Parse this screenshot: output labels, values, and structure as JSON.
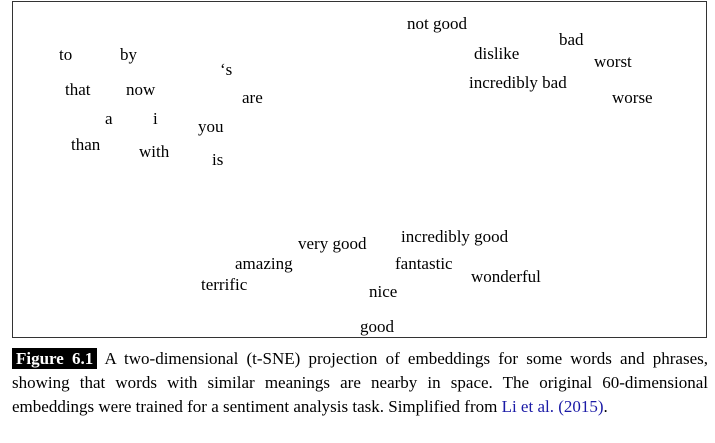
{
  "figure": {
    "words": [
      {
        "id": "not-good",
        "text": "not good"
      },
      {
        "id": "bad",
        "text": "bad"
      },
      {
        "id": "dislike",
        "text": "dislike"
      },
      {
        "id": "worst",
        "text": "worst"
      },
      {
        "id": "incredibly-bad",
        "text": "incredibly bad"
      },
      {
        "id": "worse",
        "text": "worse"
      },
      {
        "id": "to",
        "text": "to"
      },
      {
        "id": "by",
        "text": "by"
      },
      {
        "id": "s",
        "text": "‘s"
      },
      {
        "id": "that",
        "text": "that"
      },
      {
        "id": "now",
        "text": "now"
      },
      {
        "id": "are",
        "text": "are"
      },
      {
        "id": "a",
        "text": "a"
      },
      {
        "id": "i",
        "text": "i"
      },
      {
        "id": "you",
        "text": "you"
      },
      {
        "id": "than",
        "text": "than"
      },
      {
        "id": "with",
        "text": "with"
      },
      {
        "id": "is",
        "text": "is"
      },
      {
        "id": "incredibly-good",
        "text": "incredibly good"
      },
      {
        "id": "very-good",
        "text": "very good"
      },
      {
        "id": "amazing",
        "text": "amazing"
      },
      {
        "id": "fantastic",
        "text": "fantastic"
      },
      {
        "id": "wonderful",
        "text": "wonderful"
      },
      {
        "id": "terrific",
        "text": "terrific"
      },
      {
        "id": "nice",
        "text": "nice"
      },
      {
        "id": "good",
        "text": "good"
      }
    ]
  },
  "caption": {
    "label": "Figure 6.1",
    "text_before": "A two-dimensional (t-SNE) projection of embeddings for some words and phrases, showing that words with similar meanings are nearby in space.  The original 60-dimensional embeddings were trained for a sentiment analysis task. Simplified from ",
    "citation": "Li et al. (2015)",
    "text_after": "."
  },
  "colors": {
    "citation_link": "#1a1aa6",
    "label_background": "#000000",
    "label_text": "#ffffff"
  }
}
